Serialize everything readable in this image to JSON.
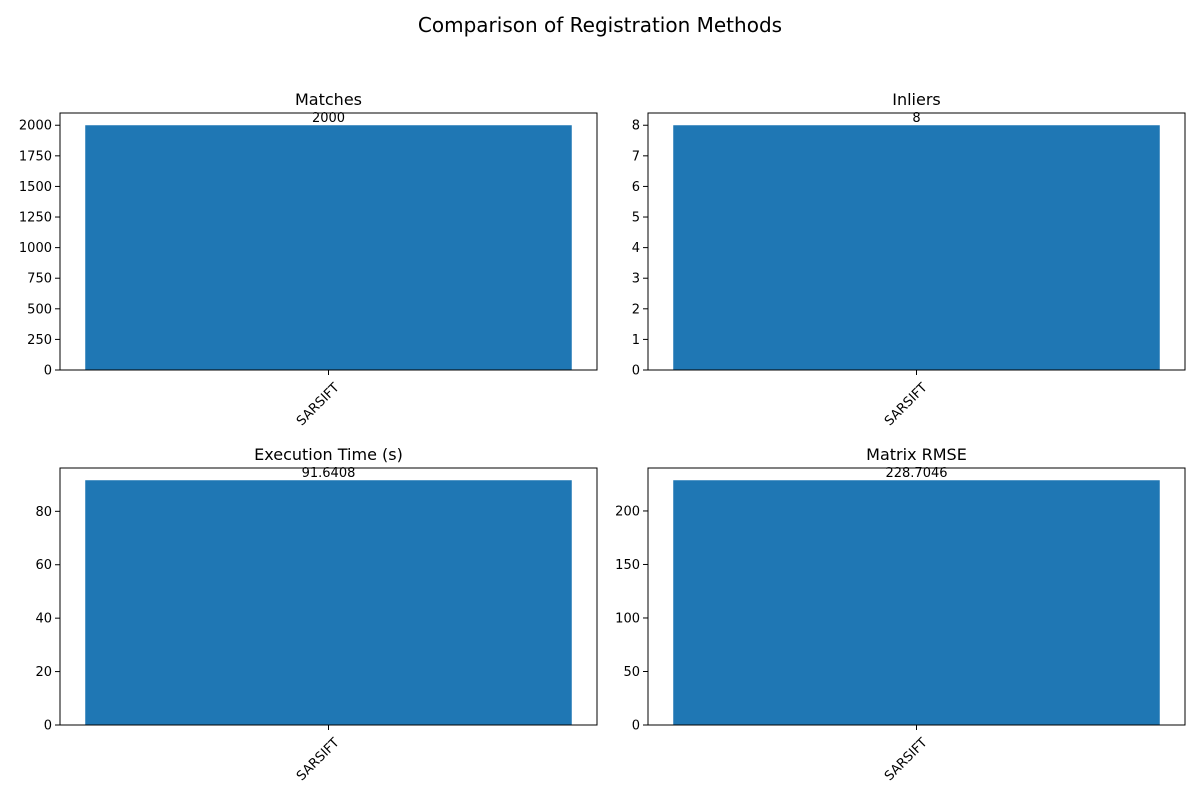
{
  "figure": {
    "title": "Comparison of Registration Methods",
    "bar_color": "#1f77b4"
  },
  "chart_data": [
    {
      "type": "bar",
      "title": "Matches",
      "categories": [
        "SARSIFT"
      ],
      "values": [
        2000
      ],
      "value_labels": [
        "2000"
      ],
      "ylim": [
        0,
        2100
      ],
      "yticks": [
        0,
        250,
        500,
        750,
        1000,
        1250,
        1500,
        1750,
        2000
      ],
      "xlabel": "",
      "ylabel": "",
      "grid": false
    },
    {
      "type": "bar",
      "title": "Inliers",
      "categories": [
        "SARSIFT"
      ],
      "values": [
        8
      ],
      "value_labels": [
        "8"
      ],
      "ylim": [
        0,
        8.4
      ],
      "yticks": [
        0,
        1,
        2,
        3,
        4,
        5,
        6,
        7,
        8
      ],
      "xlabel": "",
      "ylabel": "",
      "grid": false
    },
    {
      "type": "bar",
      "title": "Execution Time (s)",
      "categories": [
        "SARSIFT"
      ],
      "values": [
        91.6408
      ],
      "value_labels": [
        "91.6408"
      ],
      "ylim": [
        0,
        96.22
      ],
      "yticks": [
        0,
        20,
        40,
        60,
        80
      ],
      "xlabel": "",
      "ylabel": "",
      "grid": false
    },
    {
      "type": "bar",
      "title": "Matrix RMSE",
      "categories": [
        "SARSIFT"
      ],
      "values": [
        228.7046
      ],
      "value_labels": [
        "228.7046"
      ],
      "ylim": [
        0,
        240.14
      ],
      "yticks": [
        0,
        50,
        100,
        150,
        200
      ],
      "xlabel": "",
      "ylabel": "",
      "grid": false
    }
  ]
}
